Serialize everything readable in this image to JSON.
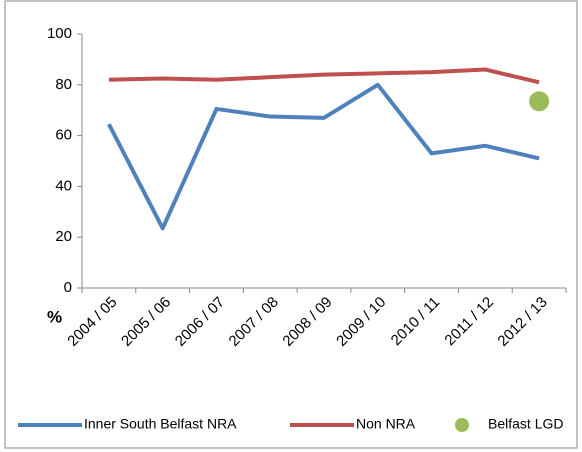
{
  "chart_data": {
    "type": "line",
    "categories": [
      "2004 / 05",
      "2005 / 06",
      "2006 / 07",
      "2007 / 08",
      "2008 / 09",
      "2009 / 10",
      "2010 / 11",
      "2011 / 12",
      "2012 / 13"
    ],
    "series": [
      {
        "name": "Inner South Belfast NRA",
        "color": "#4f81bd",
        "values": [
          64.5,
          23.5,
          70.5,
          67.5,
          67,
          80,
          53,
          56,
          51
        ]
      },
      {
        "name": "Non NRA",
        "color": "#c0504d",
        "values": [
          82,
          82.5,
          82,
          83,
          84,
          84.5,
          85,
          86,
          81
        ]
      },
      {
        "name": "Belfast LGD",
        "color": "#9bbb59",
        "marker": "point",
        "values": [
          null,
          null,
          null,
          null,
          null,
          null,
          null,
          null,
          73.5
        ]
      }
    ],
    "y_label": "%",
    "ylim": [
      0,
      100
    ],
    "yticks": [
      0,
      20,
      40,
      60,
      80,
      100
    ],
    "grid": false,
    "legend": "bottom"
  }
}
